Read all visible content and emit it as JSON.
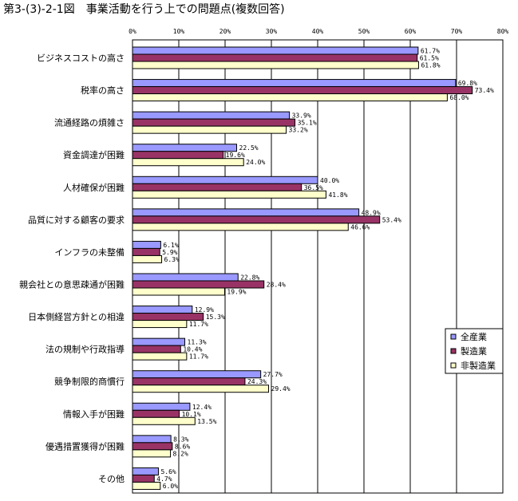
{
  "chart_data": {
    "type": "bar",
    "orientation": "horizontal",
    "title": "第3-(3)-2-1図　事業活動を行う上での問題点(複数回答)",
    "xlabel": "",
    "ylabel": "",
    "xlim": [
      0,
      80
    ],
    "ticks": [
      "0%",
      "10%",
      "20%",
      "30%",
      "40%",
      "50%",
      "60%",
      "70%",
      "80%"
    ],
    "grid": true,
    "legend_position": "right",
    "categories": [
      "ビジネスコストの高さ",
      "税率の高さ",
      "流通経路の煩雑さ",
      "資金調達が困難",
      "人材確保が困難",
      "品質に対する顧客の要求",
      "インフラの未整備",
      "親会社との意思疎通が困難",
      "日本側経営方針との相違",
      "法の規制や行政指導",
      "競争制限的商慣行",
      "情報入手が困難",
      "優遇措置獲得が困難",
      "その他"
    ],
    "series": [
      {
        "name": "全産業",
        "color": "#9999ff",
        "values": [
          61.7,
          69.8,
          33.9,
          22.5,
          40.0,
          48.9,
          6.1,
          22.8,
          12.9,
          11.3,
          27.7,
          12.4,
          8.3,
          5.6
        ],
        "labels": [
          "61.7%",
          "69.8%",
          "33.9%",
          "22.5%",
          "40.0%",
          "48.9%",
          "6.1%",
          "22.8%",
          "12.9%",
          "11.3%",
          "27.7%",
          "12.4%",
          "8.3%",
          "5.6%"
        ]
      },
      {
        "name": "製造業",
        "color": "#993366",
        "values": [
          61.5,
          73.4,
          35.1,
          19.6,
          36.5,
          53.4,
          5.9,
          28.4,
          15.3,
          10.4,
          24.3,
          10.1,
          8.6,
          4.7
        ],
        "labels": [
          "61.5%",
          "73.4%",
          "35.1%",
          "19.6%",
          "36.5%",
          "53.4%",
          "5.9%",
          "28.4%",
          "15.3%",
          "10.4%",
          "24.3%",
          "10.1%",
          "8.6%",
          "4.7%"
        ]
      },
      {
        "name": "非製造業",
        "color": "#ffffcc",
        "values": [
          61.8,
          68.0,
          33.2,
          24.0,
          41.8,
          46.6,
          6.3,
          19.9,
          11.7,
          11.7,
          29.4,
          13.5,
          8.2,
          6.0
        ],
        "labels": [
          "61.8%",
          "68.0%",
          "33.2%",
          "24.0%",
          "41.8%",
          "46.6%",
          "6.3%",
          "19.9%",
          "11.7%",
          "11.7%",
          "29.4%",
          "13.5%",
          "8.2%",
          "6.0%"
        ]
      }
    ]
  }
}
